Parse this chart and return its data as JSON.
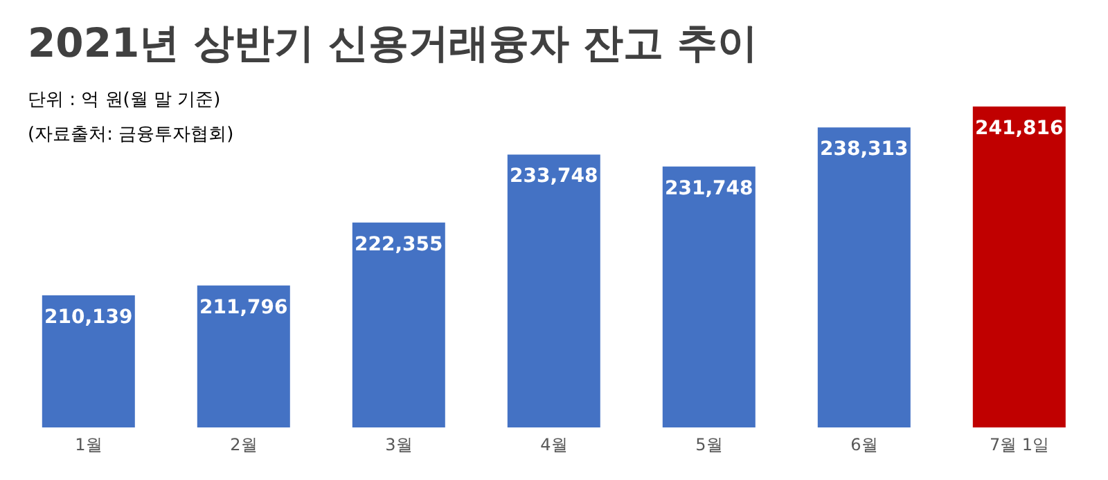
{
  "chart_data": {
    "type": "bar",
    "title": "2021년 상반기 신용거래융자 잔고 추이",
    "subtitle": "단위 : 억 원(월 말 기준)",
    "annotations": [
      "(자료출처: 금융투자협회)"
    ],
    "categories": [
      "1월",
      "2월",
      "3월",
      "4월",
      "5월",
      "6월",
      "7월 1일"
    ],
    "values": [
      210139,
      211796,
      222355,
      233748,
      231748,
      238313,
      241816
    ],
    "value_labels": [
      "210,139",
      "211,796",
      "222,355",
      "233,748",
      "231,748",
      "238,313",
      "241,816"
    ],
    "colors": [
      "#4472c4",
      "#4472c4",
      "#4472c4",
      "#4472c4",
      "#4472c4",
      "#4472c4",
      "#c00000"
    ],
    "ylim": [
      188000,
      241816
    ],
    "tick_labels": "x"
  }
}
